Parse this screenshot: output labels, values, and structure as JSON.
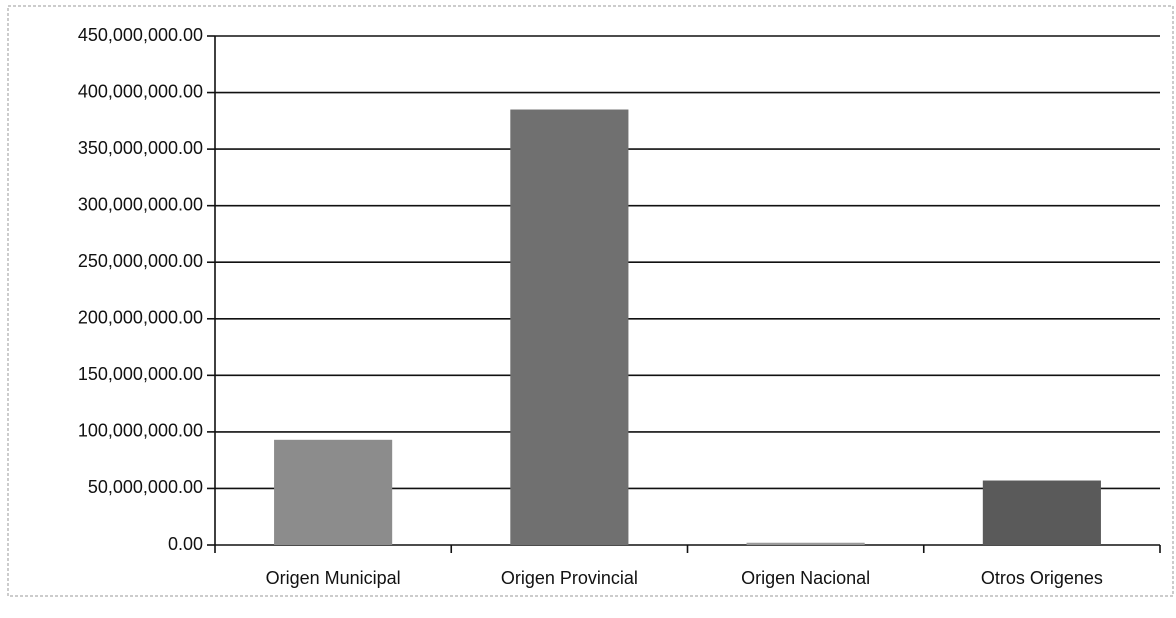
{
  "chart_data": {
    "type": "bar",
    "categories": [
      "Origen Municipal",
      "Origen Provincial",
      "Origen Nacional",
      "Otros Origenes"
    ],
    "values": [
      93000000,
      385000000,
      2000000,
      57000000
    ],
    "colors": [
      "#8c8c8c",
      "#707070",
      "#9a9a9a",
      "#5a5a5a"
    ],
    "ylim": [
      0,
      450000000
    ],
    "yticks": [
      {
        "value": 0,
        "label": "0.00"
      },
      {
        "value": 50000000,
        "label": "50,000,000.00"
      },
      {
        "value": 100000000,
        "label": "100,000,000.00"
      },
      {
        "value": 150000000,
        "label": "150,000,000.00"
      },
      {
        "value": 200000000,
        "label": "200,000,000.00"
      },
      {
        "value": 250000000,
        "label": "250,000,000.00"
      },
      {
        "value": 300000000,
        "label": "300,000,000.00"
      },
      {
        "value": 350000000,
        "label": "350,000,000.00"
      },
      {
        "value": 400000000,
        "label": "400,000,000.00"
      },
      {
        "value": 450000000,
        "label": "450,000,000.00"
      }
    ],
    "grid": true
  }
}
